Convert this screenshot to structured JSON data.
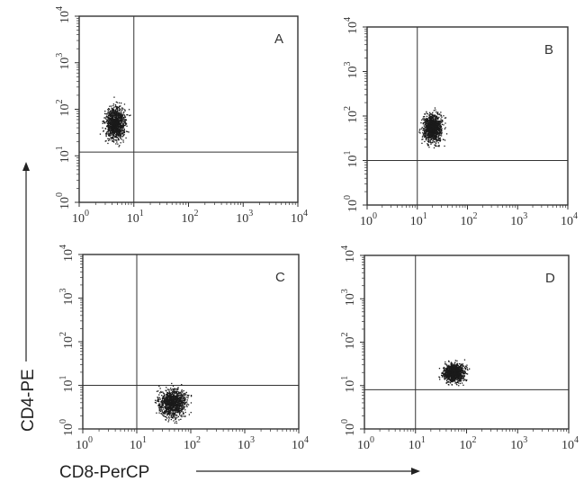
{
  "chart_data": [
    {
      "type": "scatter",
      "panel_label": "A",
      "x_scale": "log",
      "y_scale": "log",
      "xlim": [
        1,
        10000
      ],
      "ylim": [
        1,
        10000
      ],
      "x_ticks": [
        "10^0",
        "10^1",
        "10^2",
        "10^3",
        "10^4"
      ],
      "y_ticks": [
        "10^0",
        "10^1",
        "10^2",
        "10^3",
        "10^4"
      ],
      "quadrant_gates": {
        "x": 10,
        "y": 12
      },
      "cluster": {
        "x_center": 4.5,
        "y_center": 50,
        "x_range": [
          2.5,
          10
        ],
        "y_range": [
          15,
          250
        ]
      }
    },
    {
      "type": "scatter",
      "panel_label": "B",
      "x_scale": "log",
      "y_scale": "log",
      "xlim": [
        1,
        10000
      ],
      "ylim": [
        1,
        10000
      ],
      "x_ticks": [
        "10^0",
        "10^1",
        "10^2",
        "10^3",
        "10^4"
      ],
      "y_ticks": [
        "10^0",
        "10^1",
        "10^2",
        "10^3",
        "10^4"
      ],
      "quadrant_gates": {
        "x": 10,
        "y": 10
      },
      "cluster": {
        "x_center": 20,
        "y_center": 55,
        "x_range": [
          10,
          45
        ],
        "y_range": [
          15,
          180
        ]
      }
    },
    {
      "type": "scatter",
      "panel_label": "C",
      "x_scale": "log",
      "y_scale": "log",
      "xlim": [
        1,
        10000
      ],
      "ylim": [
        1,
        10000
      ],
      "x_ticks": [
        "10^0",
        "10^1",
        "10^2",
        "10^3",
        "10^4"
      ],
      "y_ticks": [
        "10^0",
        "10^1",
        "10^2",
        "10^3",
        "10^4"
      ],
      "quadrant_gates": {
        "x": 10,
        "y": 10
      },
      "cluster": {
        "x_center": 45,
        "y_center": 4,
        "x_range": [
          18,
          130
        ],
        "y_range": [
          1.5,
          18
        ]
      }
    },
    {
      "type": "scatter",
      "panel_label": "D",
      "x_scale": "log",
      "y_scale": "log",
      "xlim": [
        1,
        10000
      ],
      "ylim": [
        1,
        10000
      ],
      "x_ticks": [
        "10^0",
        "10^1",
        "10^2",
        "10^3",
        "10^4"
      ],
      "y_ticks": [
        "10^0",
        "10^1",
        "10^2",
        "10^3",
        "10^4"
      ],
      "quadrant_gates": {
        "x": 10,
        "y": 8
      },
      "cluster": {
        "x_center": 55,
        "y_center": 20,
        "x_range": [
          25,
          130
        ],
        "y_range": [
          9,
          50
        ]
      }
    }
  ],
  "ylabel": "CD4-PE",
  "xlabel": "CD8-PerCP",
  "colors": {
    "ink": "#1a1a1a",
    "frame": "#333333"
  }
}
